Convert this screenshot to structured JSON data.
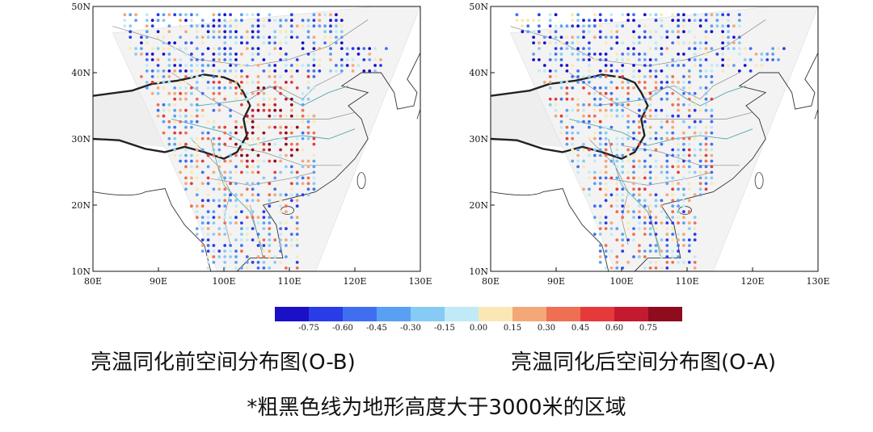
{
  "panels": [
    {
      "id": "left",
      "caption": "亮温同化前空间分布图(O-B)",
      "x_ticks": [
        "80E",
        "90E",
        "100E",
        "110E",
        "120E",
        "130E"
      ],
      "y_ticks": [
        "50N",
        "40N",
        "30N",
        "20N",
        "10N"
      ],
      "seed": 7,
      "bias": 0.22
    },
    {
      "id": "right",
      "caption": "亮温同化后空间分布图(O-A)",
      "x_ticks": [
        "80E",
        "90E",
        "100E",
        "110E",
        "120E",
        "130E"
      ],
      "y_ticks": [
        "50N",
        "40N",
        "30N",
        "20N",
        "10N"
      ],
      "seed": 19,
      "bias": -0.05
    }
  ],
  "colorbar": {
    "colors": [
      "#1a10c8",
      "#2a3ce8",
      "#3f6ff0",
      "#5aa0f2",
      "#86cbf6",
      "#bfeaf6",
      "#fbe7b4",
      "#f4a877",
      "#ee6f52",
      "#e63a3a",
      "#c41a30",
      "#8e0c1e"
    ],
    "labels": [
      "-0.75",
      "-0.60",
      "-0.45",
      "-0.30",
      "-0.15",
      "0.00",
      "0.15",
      "0.30",
      "0.45",
      "0.60",
      "0.75"
    ]
  },
  "note": "*粗黑色线为地形高度大于3000米的区域"
}
